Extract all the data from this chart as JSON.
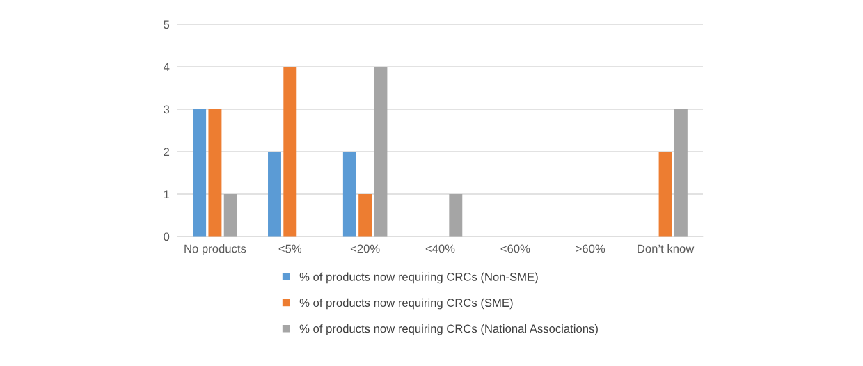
{
  "chart_data": {
    "type": "bar",
    "categories": [
      "No products",
      "<5%",
      "<20%",
      "<40%",
      "<60%",
      ">60%",
      "Don’t know"
    ],
    "series": [
      {
        "name": "% of products now requiring CRCs (Non-SME)",
        "color": "#5b9bd5",
        "values": [
          3,
          2,
          2,
          0,
          0,
          0,
          0
        ]
      },
      {
        "name": "% of products now requiring CRCs (SME)",
        "color": "#ed7d31",
        "values": [
          3,
          4,
          1,
          0,
          0,
          0,
          2
        ]
      },
      {
        "name": "% of products now requiring CRCs (National Associations)",
        "color": "#a5a5a5",
        "values": [
          1,
          0,
          4,
          1,
          0,
          0,
          3
        ]
      }
    ],
    "ylim": [
      0,
      5
    ],
    "yticks": [
      0,
      1,
      2,
      3,
      4,
      5
    ],
    "grid": "y",
    "legend": "bottom"
  }
}
